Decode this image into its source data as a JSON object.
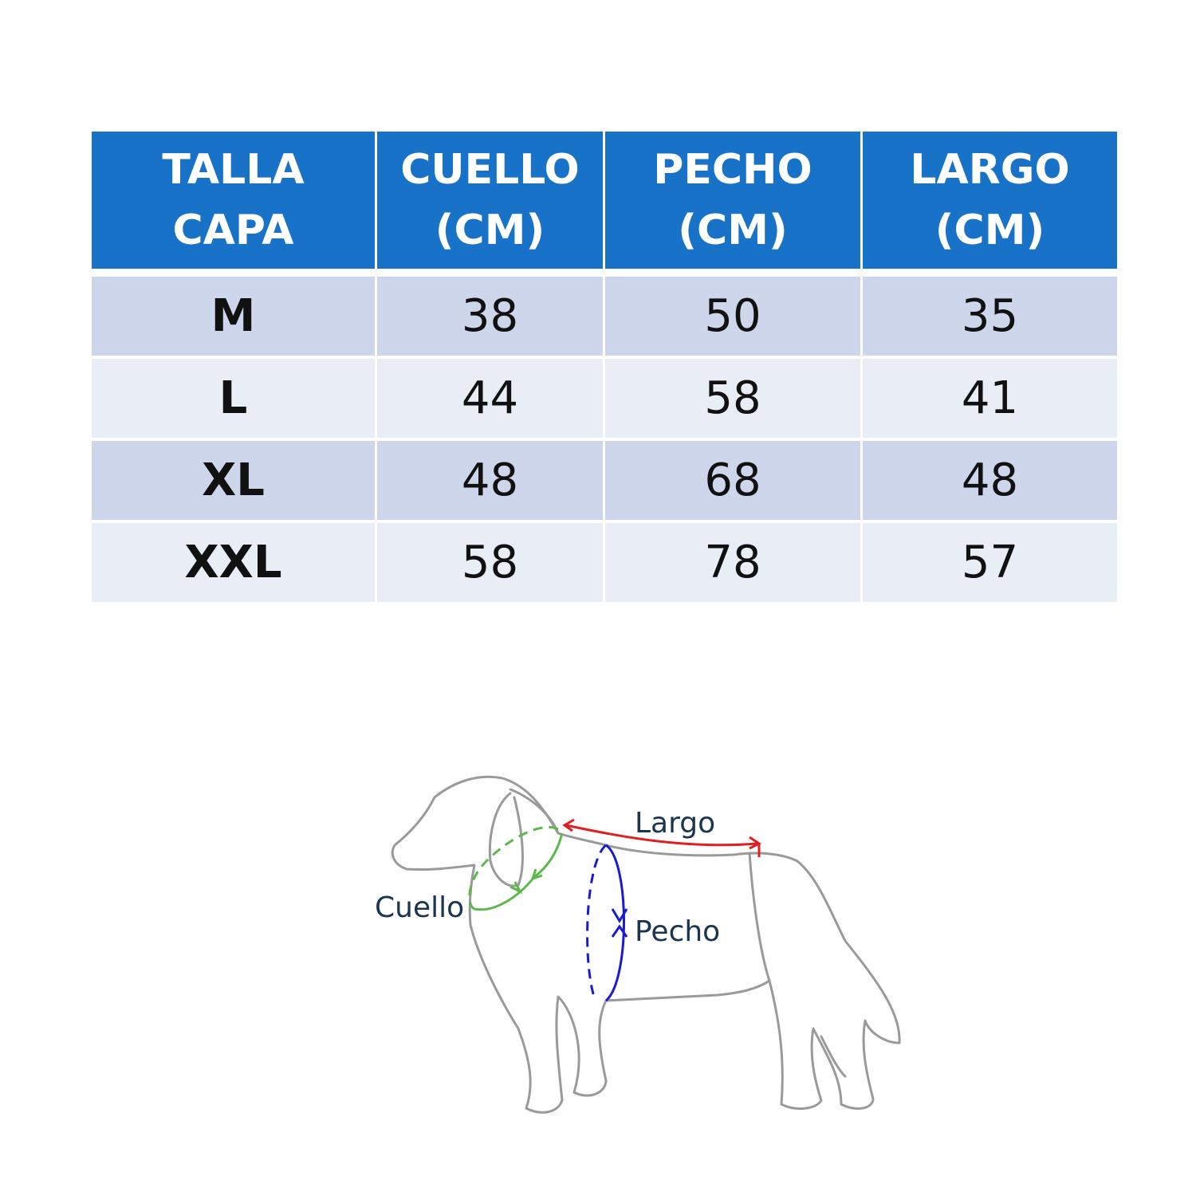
{
  "table": {
    "headers": [
      [
        "TALLA",
        "CAPA"
      ],
      [
        "CUELLO",
        "(CM)"
      ],
      [
        "PECHO",
        "(CM)"
      ],
      [
        "LARGO",
        "(CM)"
      ]
    ],
    "rows": [
      [
        "M",
        "38",
        "50",
        "35"
      ],
      [
        "L",
        "44",
        "58",
        "41"
      ],
      [
        "XL",
        "48",
        "68",
        "48"
      ],
      [
        "XXL",
        "58",
        "78",
        "57"
      ]
    ]
  },
  "diagram": {
    "labels": {
      "largo": "Largo",
      "cuello": "Cuello",
      "pecho": "Pecho"
    },
    "colors": {
      "largo": "#e02020",
      "cuello": "#5cb84a",
      "pecho": "#1a1ad0",
      "outline": "#9a9a9a",
      "header": "#1872c8"
    }
  }
}
